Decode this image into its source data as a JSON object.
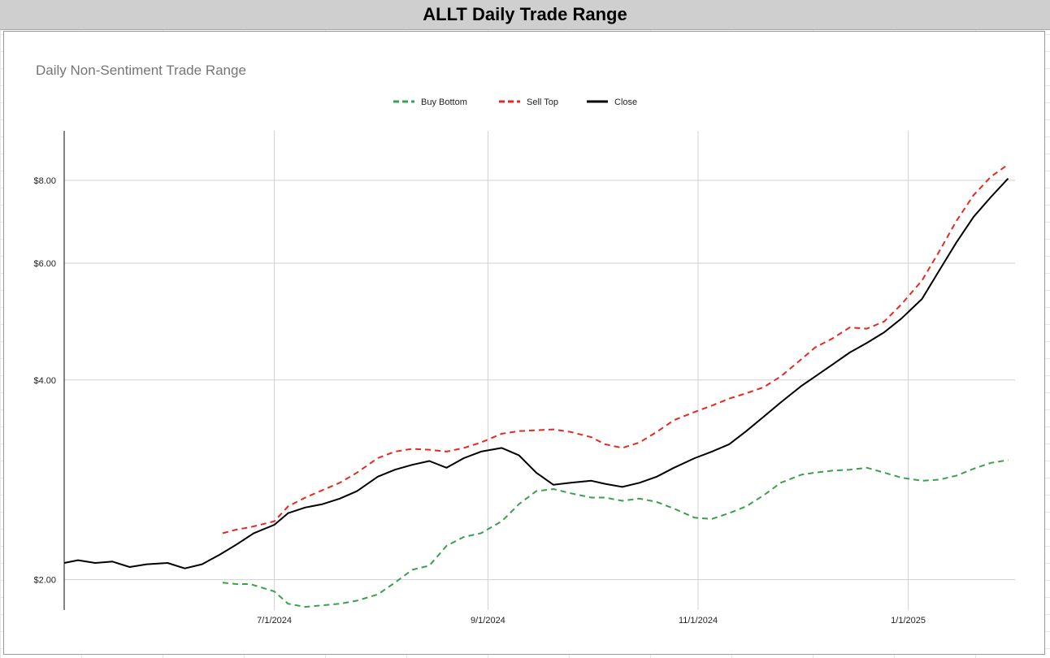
{
  "sheet_title": "ALLT Daily Trade Range",
  "chart_data": {
    "type": "line",
    "title": "Daily Non-Sentiment Trade Range",
    "xlabel": "",
    "ylabel": "",
    "y_scale": "log",
    "ylim": [
      1.8,
      9.5
    ],
    "xlim": [
      "2024-05-01",
      "2025-02-01"
    ],
    "x_ticks": [
      "2024-07-01",
      "2024-09-01",
      "2024-11-01",
      "2025-01-01"
    ],
    "x_tick_labels": [
      "7/1/2024",
      "9/1/2024",
      "11/1/2024",
      "1/1/2025"
    ],
    "y_ticks": [
      2,
      4,
      6,
      8
    ],
    "y_tick_labels": [
      "$2.00",
      "$4.00",
      "$6.00",
      "$8.00"
    ],
    "grid": true,
    "legend_position": "top-center",
    "series": [
      {
        "name": "Buy Bottom",
        "color": "#3aa14a",
        "style": "dashed",
        "points": [
          [
            "2024-06-16",
            1.98
          ],
          [
            "2024-06-20",
            1.97
          ],
          [
            "2024-06-24",
            1.97
          ],
          [
            "2024-07-01",
            1.92
          ],
          [
            "2024-07-05",
            1.84
          ],
          [
            "2024-07-10",
            1.82
          ],
          [
            "2024-07-15",
            1.83
          ],
          [
            "2024-07-20",
            1.84
          ],
          [
            "2024-07-25",
            1.86
          ],
          [
            "2024-07-31",
            1.9
          ],
          [
            "2024-08-05",
            1.98
          ],
          [
            "2024-08-10",
            2.07
          ],
          [
            "2024-08-15",
            2.1
          ],
          [
            "2024-08-20",
            2.25
          ],
          [
            "2024-08-25",
            2.32
          ],
          [
            "2024-08-30",
            2.35
          ],
          [
            "2024-09-05",
            2.45
          ],
          [
            "2024-09-10",
            2.6
          ],
          [
            "2024-09-15",
            2.72
          ],
          [
            "2024-09-20",
            2.74
          ],
          [
            "2024-09-25",
            2.7
          ],
          [
            "2024-10-01",
            2.66
          ],
          [
            "2024-10-05",
            2.66
          ],
          [
            "2024-10-10",
            2.63
          ],
          [
            "2024-10-15",
            2.65
          ],
          [
            "2024-10-20",
            2.62
          ],
          [
            "2024-10-25",
            2.56
          ],
          [
            "2024-10-31",
            2.48
          ],
          [
            "2024-11-05",
            2.47
          ],
          [
            "2024-11-10",
            2.52
          ],
          [
            "2024-11-15",
            2.58
          ],
          [
            "2024-11-20",
            2.68
          ],
          [
            "2024-11-25",
            2.8
          ],
          [
            "2024-12-01",
            2.88
          ],
          [
            "2024-12-05",
            2.9
          ],
          [
            "2024-12-10",
            2.92
          ],
          [
            "2024-12-15",
            2.93
          ],
          [
            "2024-12-20",
            2.95
          ],
          [
            "2024-12-25",
            2.9
          ],
          [
            "2024-12-30",
            2.85
          ],
          [
            "2025-01-05",
            2.82
          ],
          [
            "2025-01-10",
            2.83
          ],
          [
            "2025-01-15",
            2.87
          ],
          [
            "2025-01-20",
            2.94
          ],
          [
            "2025-01-25",
            3.0
          ],
          [
            "2025-01-30",
            3.03
          ]
        ]
      },
      {
        "name": "Sell Top",
        "color": "#e8281f",
        "style": "dashed",
        "points": [
          [
            "2024-06-16",
            2.35
          ],
          [
            "2024-06-20",
            2.38
          ],
          [
            "2024-06-24",
            2.4
          ],
          [
            "2024-07-01",
            2.45
          ],
          [
            "2024-07-05",
            2.58
          ],
          [
            "2024-07-10",
            2.66
          ],
          [
            "2024-07-15",
            2.73
          ],
          [
            "2024-07-20",
            2.8
          ],
          [
            "2024-07-25",
            2.9
          ],
          [
            "2024-07-31",
            3.05
          ],
          [
            "2024-08-05",
            3.12
          ],
          [
            "2024-08-10",
            3.15
          ],
          [
            "2024-08-15",
            3.14
          ],
          [
            "2024-08-20",
            3.12
          ],
          [
            "2024-08-25",
            3.16
          ],
          [
            "2024-08-30",
            3.22
          ],
          [
            "2024-09-05",
            3.32
          ],
          [
            "2024-09-10",
            3.35
          ],
          [
            "2024-09-15",
            3.36
          ],
          [
            "2024-09-20",
            3.37
          ],
          [
            "2024-09-25",
            3.34
          ],
          [
            "2024-10-01",
            3.28
          ],
          [
            "2024-10-05",
            3.2
          ],
          [
            "2024-10-10",
            3.16
          ],
          [
            "2024-10-15",
            3.22
          ],
          [
            "2024-10-20",
            3.34
          ],
          [
            "2024-10-25",
            3.48
          ],
          [
            "2024-10-31",
            3.58
          ],
          [
            "2024-11-05",
            3.66
          ],
          [
            "2024-11-10",
            3.75
          ],
          [
            "2024-11-15",
            3.82
          ],
          [
            "2024-11-20",
            3.9
          ],
          [
            "2024-11-25",
            4.05
          ],
          [
            "2024-12-01",
            4.3
          ],
          [
            "2024-12-05",
            4.48
          ],
          [
            "2024-12-10",
            4.62
          ],
          [
            "2024-12-15",
            4.8
          ],
          [
            "2024-12-20",
            4.78
          ],
          [
            "2024-12-25",
            4.9
          ],
          [
            "2024-12-30",
            5.2
          ],
          [
            "2025-01-05",
            5.65
          ],
          [
            "2025-01-10",
            6.25
          ],
          [
            "2025-01-15",
            6.95
          ],
          [
            "2025-01-20",
            7.6
          ],
          [
            "2025-01-25",
            8.1
          ],
          [
            "2025-01-30",
            8.45
          ]
        ]
      },
      {
        "name": "Close",
        "color": "#000000",
        "style": "solid",
        "points": [
          [
            "2024-05-01",
            2.12
          ],
          [
            "2024-05-05",
            2.14
          ],
          [
            "2024-05-10",
            2.12
          ],
          [
            "2024-05-15",
            2.13
          ],
          [
            "2024-05-20",
            2.09
          ],
          [
            "2024-05-25",
            2.11
          ],
          [
            "2024-05-31",
            2.12
          ],
          [
            "2024-06-05",
            2.08
          ],
          [
            "2024-06-10",
            2.11
          ],
          [
            "2024-06-15",
            2.18
          ],
          [
            "2024-06-20",
            2.26
          ],
          [
            "2024-06-25",
            2.35
          ],
          [
            "2024-07-01",
            2.42
          ],
          [
            "2024-07-05",
            2.52
          ],
          [
            "2024-07-10",
            2.57
          ],
          [
            "2024-07-15",
            2.6
          ],
          [
            "2024-07-20",
            2.65
          ],
          [
            "2024-07-25",
            2.72
          ],
          [
            "2024-07-31",
            2.86
          ],
          [
            "2024-08-05",
            2.93
          ],
          [
            "2024-08-10",
            2.98
          ],
          [
            "2024-08-15",
            3.02
          ],
          [
            "2024-08-20",
            2.95
          ],
          [
            "2024-08-25",
            3.05
          ],
          [
            "2024-08-30",
            3.12
          ],
          [
            "2024-09-05",
            3.16
          ],
          [
            "2024-09-10",
            3.08
          ],
          [
            "2024-09-15",
            2.9
          ],
          [
            "2024-09-20",
            2.78
          ],
          [
            "2024-09-25",
            2.8
          ],
          [
            "2024-10-01",
            2.82
          ],
          [
            "2024-10-05",
            2.79
          ],
          [
            "2024-10-10",
            2.76
          ],
          [
            "2024-10-15",
            2.8
          ],
          [
            "2024-10-20",
            2.86
          ],
          [
            "2024-10-25",
            2.95
          ],
          [
            "2024-10-31",
            3.05
          ],
          [
            "2024-11-05",
            3.12
          ],
          [
            "2024-11-10",
            3.2
          ],
          [
            "2024-11-15",
            3.35
          ],
          [
            "2024-11-20",
            3.52
          ],
          [
            "2024-11-25",
            3.7
          ],
          [
            "2024-12-01",
            3.92
          ],
          [
            "2024-12-05",
            4.05
          ],
          [
            "2024-12-10",
            4.22
          ],
          [
            "2024-12-15",
            4.4
          ],
          [
            "2024-12-20",
            4.55
          ],
          [
            "2024-12-25",
            4.72
          ],
          [
            "2024-12-30",
            4.95
          ],
          [
            "2025-01-05",
            5.3
          ],
          [
            "2025-01-10",
            5.85
          ],
          [
            "2025-01-15",
            6.45
          ],
          [
            "2025-01-20",
            7.05
          ],
          [
            "2025-01-25",
            7.55
          ],
          [
            "2025-01-30",
            8.05
          ]
        ]
      }
    ]
  }
}
